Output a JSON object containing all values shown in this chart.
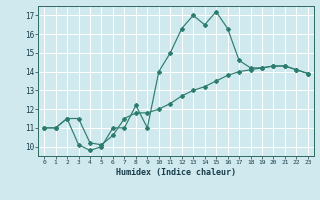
{
  "xlabel": "Humidex (Indice chaleur)",
  "bg_color": "#cfe9ee",
  "grid_color": "#ffffff",
  "line_color": "#2d7d6f",
  "ylim": [
    9.5,
    17.5
  ],
  "xlim": [
    -0.5,
    23.5
  ],
  "yticks": [
    10,
    11,
    12,
    13,
    14,
    15,
    16,
    17
  ],
  "xticks": [
    0,
    1,
    2,
    3,
    4,
    5,
    6,
    7,
    8,
    9,
    10,
    11,
    12,
    13,
    14,
    15,
    16,
    17,
    18,
    19,
    20,
    21,
    22,
    23
  ],
  "line1_x": [
    0,
    1,
    2,
    3,
    4,
    5,
    6,
    7,
    8,
    9,
    10,
    11,
    12,
    13,
    14,
    15,
    16,
    17,
    18,
    19,
    20,
    21,
    22,
    23
  ],
  "line1_y": [
    11.0,
    11.0,
    11.5,
    10.1,
    9.8,
    10.0,
    11.0,
    11.0,
    12.2,
    11.0,
    14.0,
    15.0,
    16.3,
    17.0,
    16.5,
    17.2,
    16.3,
    14.6,
    14.2,
    14.2,
    14.3,
    14.3,
    14.1,
    13.9
  ],
  "line2_x": [
    0,
    1,
    2,
    3,
    4,
    5,
    6,
    7,
    8,
    9,
    10,
    11,
    12,
    13,
    14,
    15,
    16,
    17,
    18,
    19,
    20,
    21,
    22,
    23
  ],
  "line2_y": [
    11.0,
    11.0,
    11.5,
    11.5,
    10.2,
    10.1,
    10.6,
    11.5,
    11.8,
    11.8,
    12.0,
    12.3,
    12.7,
    13.0,
    13.2,
    13.5,
    13.8,
    14.0,
    14.1,
    14.2,
    14.3,
    14.3,
    14.1,
    13.9
  ]
}
